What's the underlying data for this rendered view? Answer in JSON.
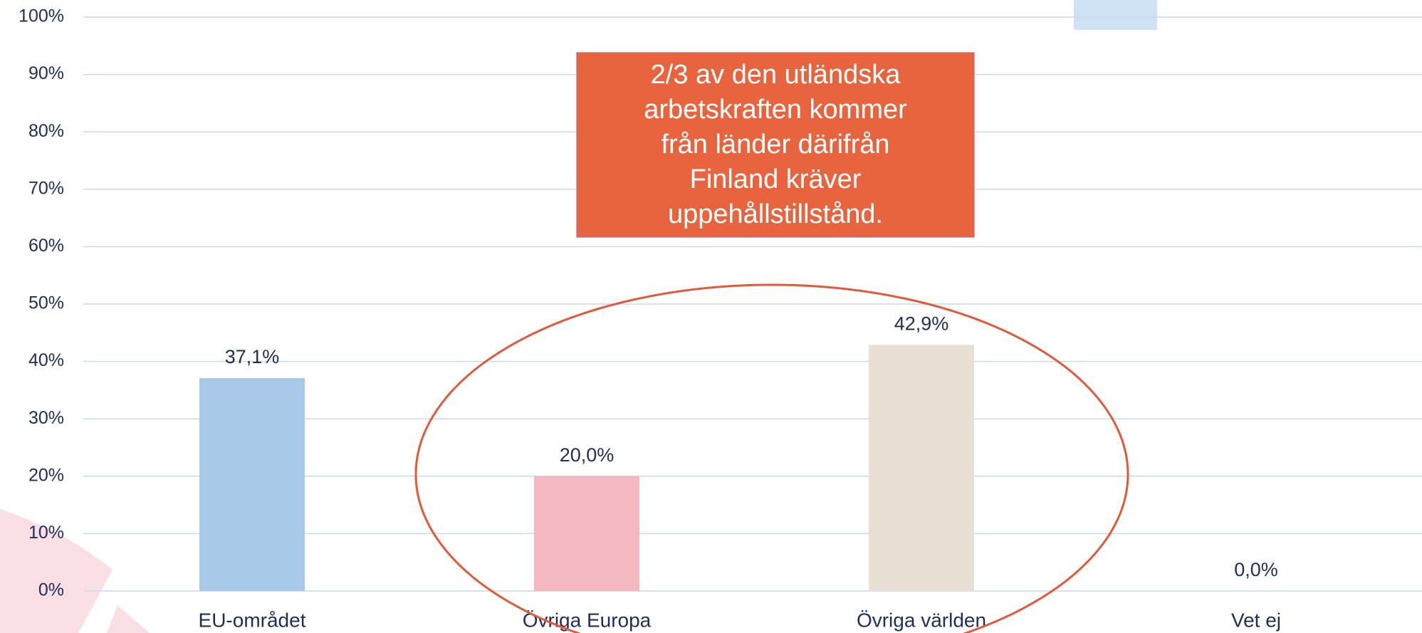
{
  "chart_data": {
    "type": "bar",
    "categories": [
      "EU-området",
      "Övriga Europa",
      "Övriga världen",
      "Vet ej"
    ],
    "values": [
      37.1,
      20.0,
      42.9,
      0.0
    ],
    "value_labels": [
      "37,1%",
      "20,0%",
      "42,9%",
      "0,0%"
    ],
    "colors": [
      "#a9c9e8",
      "#f3b8c0",
      "#e8e0d4",
      "#cccccc"
    ],
    "ylim": [
      0,
      100
    ],
    "yticks": [
      {
        "value": 0,
        "label": "0%"
      },
      {
        "value": 10,
        "label": "10%"
      },
      {
        "value": 20,
        "label": "20%"
      },
      {
        "value": 30,
        "label": "30%"
      },
      {
        "value": 40,
        "label": "40%"
      },
      {
        "value": 50,
        "label": "50%"
      },
      {
        "value": 60,
        "label": "60%"
      },
      {
        "value": 70,
        "label": "70%"
      },
      {
        "value": 80,
        "label": "80%"
      },
      {
        "value": 90,
        "label": "90%"
      },
      {
        "value": 100,
        "label": "100%"
      }
    ],
    "grid": true,
    "annotation": [
      "2/3 av den utländska",
      "arbetskraften kommer",
      "från länder därifrån",
      "Finland kräver",
      "uppehållstillstånd."
    ]
  }
}
